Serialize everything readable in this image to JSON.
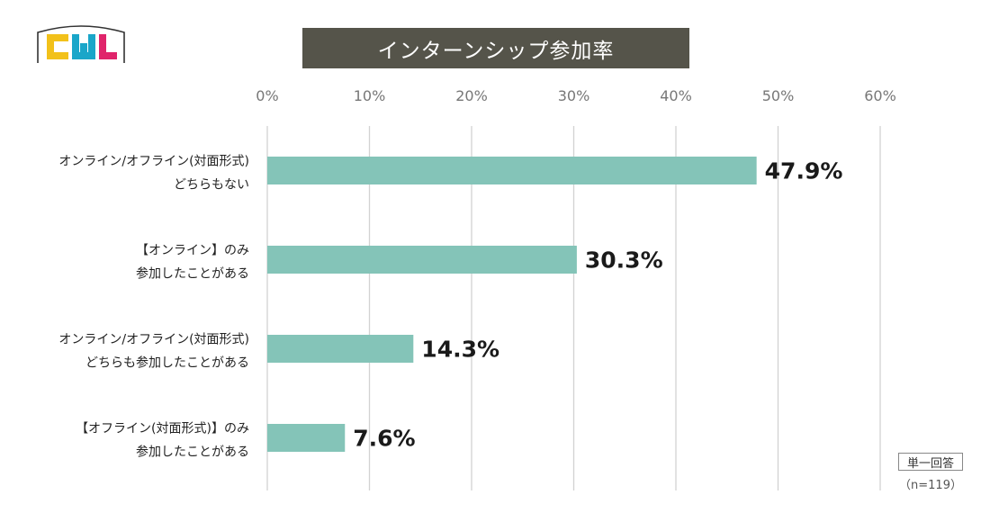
{
  "logo": {
    "text": "CWL",
    "colors": [
      "#f2c11a",
      "#1aa6c9",
      "#e0246b"
    ]
  },
  "chart_data": {
    "type": "bar",
    "orientation": "horizontal",
    "title": "インターンシップ参加率",
    "xlim": [
      0,
      60
    ],
    "xticks": [
      "0%",
      "10%",
      "20%",
      "30%",
      "40%",
      "50%",
      "60%"
    ],
    "grid": true,
    "bar_color": "#84c4b8",
    "categories": [
      [
        "オンライン/オフライン(対面形式)",
        "どちらもない"
      ],
      [
        "【オンライン】のみ",
        "参加したことがある"
      ],
      [
        "オンライン/オフライン(対面形式)",
        "どちらも参加したことがある"
      ],
      [
        "【オフライン(対面形式)】のみ",
        "参加したことがある"
      ]
    ],
    "values": [
      47.9,
      30.3,
      14.3,
      7.6
    ],
    "value_labels": [
      "47.9%",
      "30.3%",
      "14.3%",
      "7.6%"
    ]
  },
  "notes": {
    "answer_type": "単一回答",
    "sample": "（n=119）"
  }
}
